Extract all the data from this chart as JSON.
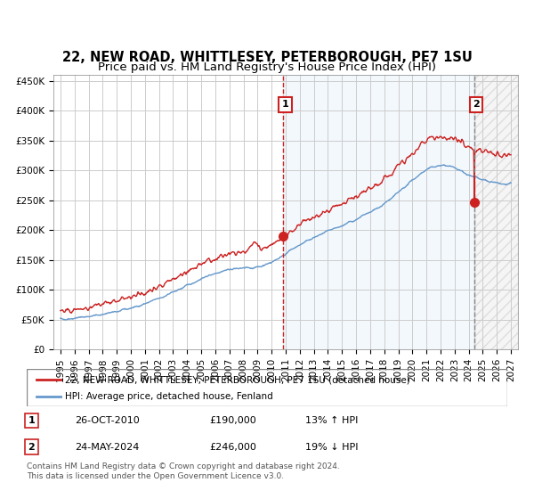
{
  "title": "22, NEW ROAD, WHITTLESEY, PETERBOROUGH, PE7 1SU",
  "subtitle": "Price paid vs. HM Land Registry's House Price Index (HPI)",
  "legend_line1": "22, NEW ROAD, WHITTLESEY, PETERBOROUGH, PE7 1SU (detached house)",
  "legend_line2": "HPI: Average price, detached house, Fenland",
  "annotation1_label": "1",
  "annotation1_date": "26-OCT-2010",
  "annotation1_price": "£190,000",
  "annotation1_hpi": "13% ↑ HPI",
  "annotation2_label": "2",
  "annotation2_date": "24-MAY-2024",
  "annotation2_price": "£246,000",
  "annotation2_hpi": "19% ↓ HPI",
  "footer": "Contains HM Land Registry data © Crown copyright and database right 2024.\nThis data is licensed under the Open Government Licence v3.0.",
  "hpi_color": "#6699cc",
  "price_color": "#cc2222",
  "dot_color": "#cc2222",
  "bg_color": "#ffffff",
  "chart_bg": "#f0f4ff",
  "hatch_bg": "#e8e8e8",
  "grid_color": "#cccccc",
  "shade_color": "#d0e4f7",
  "ylim_max": 460000,
  "ylim_min": 0,
  "year_start": 1995,
  "year_end": 2027,
  "event1_year": 2010.82,
  "event1_price": 190000,
  "event2_year": 2024.39,
  "event2_price": 246000,
  "title_fontsize": 10.5,
  "subtitle_fontsize": 9.5,
  "tick_fontsize": 7.5
}
